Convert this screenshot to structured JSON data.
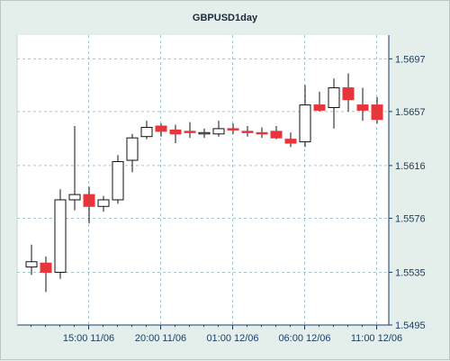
{
  "chart_data": {
    "type": "candlestick",
    "title": "GBPUSD1day",
    "xlabel": "",
    "ylabel": "",
    "ylim": [
      1.5495,
      1.5715
    ],
    "grid": true,
    "y_ticks": [
      "1.5697",
      "1.5657",
      "1.5616",
      "1.5576",
      "1.5535",
      "1.5495"
    ],
    "x_ticks": [
      "15:00 11/06",
      "20:00 11/06",
      "01:00 12/06",
      "06:00 12/06",
      "11:00 12/06"
    ],
    "x_tick_index": [
      4,
      9,
      14,
      19,
      24
    ],
    "colors": {
      "up": "#ffffff",
      "down": "#e8343b",
      "outline": "#111111",
      "background": "#e4eeea",
      "plot": "#ffffff",
      "grid": "#8fd0d6",
      "axis": "#1b3f66"
    },
    "candles": [
      {
        "open": 1.5539,
        "high": 1.5556,
        "low": 1.5533,
        "close": 1.5543
      },
      {
        "open": 1.5542,
        "high": 1.5547,
        "low": 1.552,
        "close": 1.5535
      },
      {
        "open": 1.5535,
        "high": 1.5598,
        "low": 1.553,
        "close": 1.559
      },
      {
        "open": 1.559,
        "high": 1.5646,
        "low": 1.5582,
        "close": 1.5594
      },
      {
        "open": 1.5594,
        "high": 1.56,
        "low": 1.5572,
        "close": 1.5585
      },
      {
        "open": 1.5585,
        "high": 1.5593,
        "low": 1.5581,
        "close": 1.559
      },
      {
        "open": 1.559,
        "high": 1.5624,
        "low": 1.5587,
        "close": 1.5619
      },
      {
        "open": 1.562,
        "high": 1.564,
        "low": 1.5611,
        "close": 1.5637
      },
      {
        "open": 1.5638,
        "high": 1.565,
        "low": 1.5636,
        "close": 1.5645
      },
      {
        "open": 1.5646,
        "high": 1.5648,
        "low": 1.5638,
        "close": 1.5642
      },
      {
        "open": 1.5643,
        "high": 1.5647,
        "low": 1.5633,
        "close": 1.564
      },
      {
        "open": 1.5642,
        "high": 1.5649,
        "low": 1.5637,
        "close": 1.5641
      },
      {
        "open": 1.564,
        "high": 1.5644,
        "low": 1.5637,
        "close": 1.5641
      },
      {
        "open": 1.564,
        "high": 1.565,
        "low": 1.5638,
        "close": 1.5644
      },
      {
        "open": 1.5644,
        "high": 1.5648,
        "low": 1.564,
        "close": 1.5643
      },
      {
        "open": 1.5642,
        "high": 1.5646,
        "low": 1.5638,
        "close": 1.5641
      },
      {
        "open": 1.5641,
        "high": 1.5645,
        "low": 1.5637,
        "close": 1.564
      },
      {
        "open": 1.5642,
        "high": 1.5646,
        "low": 1.5636,
        "close": 1.5637
      },
      {
        "open": 1.5636,
        "high": 1.5641,
        "low": 1.563,
        "close": 1.5633
      },
      {
        "open": 1.5634,
        "high": 1.5677,
        "low": 1.563,
        "close": 1.5662
      },
      {
        "open": 1.5662,
        "high": 1.5672,
        "low": 1.5657,
        "close": 1.5658
      },
      {
        "open": 1.566,
        "high": 1.5682,
        "low": 1.5644,
        "close": 1.5675
      },
      {
        "open": 1.5675,
        "high": 1.5686,
        "low": 1.5657,
        "close": 1.5666
      },
      {
        "open": 1.5662,
        "high": 1.5675,
        "low": 1.565,
        "close": 1.5658
      },
      {
        "open": 1.5662,
        "high": 1.5668,
        "low": 1.5648,
        "close": 1.5651
      }
    ]
  }
}
